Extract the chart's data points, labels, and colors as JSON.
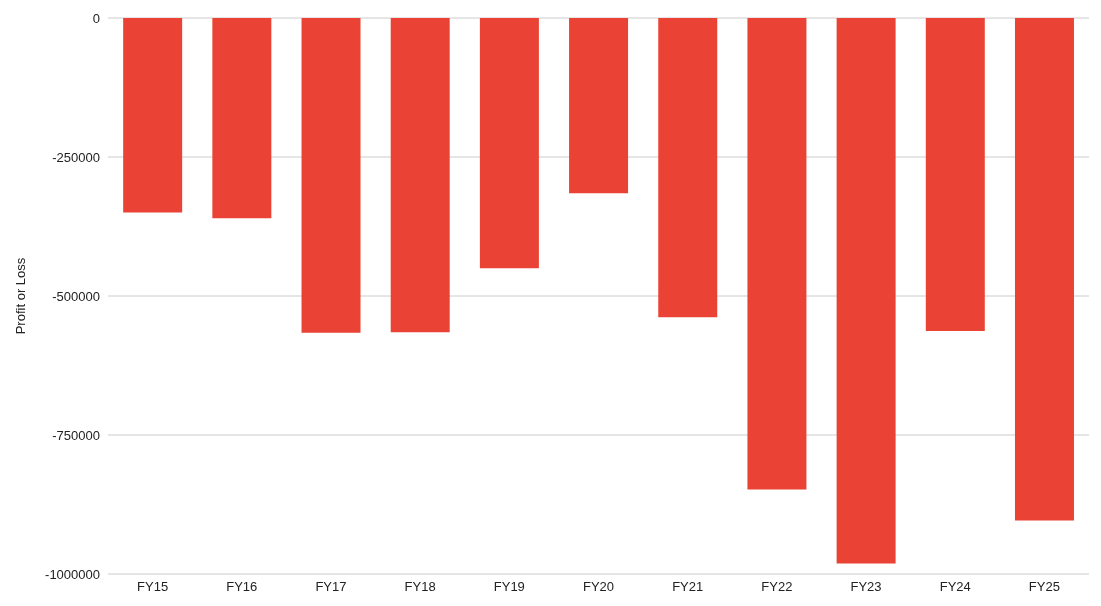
{
  "chart_data": {
    "type": "bar",
    "ylabel": "Profit or Loss",
    "categories": [
      "FY15",
      "FY16",
      "FY17",
      "FY18",
      "FY19",
      "FY20",
      "FY21",
      "FY22",
      "FY23",
      "FY24",
      "FY25"
    ],
    "values": [
      -350000,
      -360000,
      -566000,
      -565000,
      -450000,
      -315000,
      -538000,
      -848000,
      -981000,
      -563000,
      -904000
    ],
    "color": "#ea4335",
    "ylim": [
      -1000000,
      0
    ],
    "yticks": [
      -1000000,
      -750000,
      -500000,
      -250000,
      0
    ],
    "grid": "y"
  }
}
